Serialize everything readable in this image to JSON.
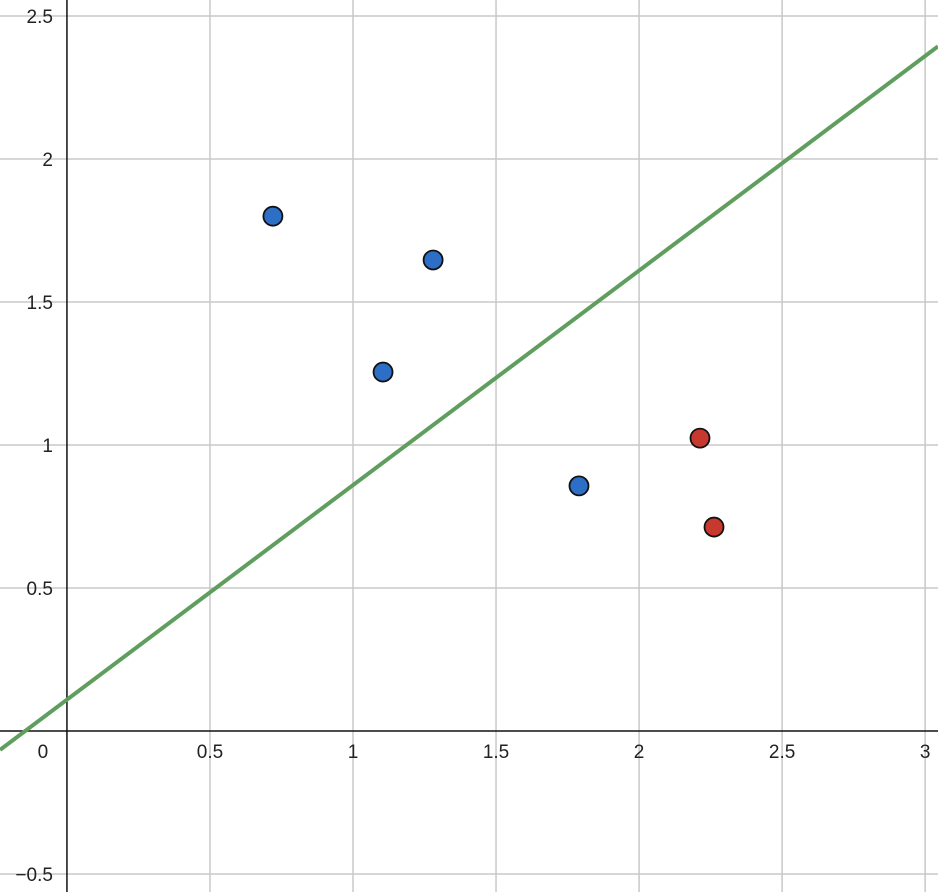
{
  "chart_data": {
    "type": "scatter",
    "xlim": [
      -0.234,
      3.045
    ],
    "ylim": [
      -0.563,
      2.556
    ],
    "xticks": [
      0,
      0.5,
      1,
      1.5,
      2,
      2.5,
      3
    ],
    "yticks": [
      {
        "value": -0.5,
        "label": "−0.5"
      },
      0.5,
      1,
      1.5,
      2,
      2.5
    ],
    "grid": true,
    "series": [
      {
        "type": "scatter",
        "color": "#2d6fc7",
        "x": [
          0.72,
          1.28,
          1.105,
          1.79
        ],
        "values": [
          1.8,
          1.647,
          1.255,
          0.857
        ]
      },
      {
        "type": "scatter",
        "color": "#c7392f",
        "x": [
          2.213,
          2.262
        ],
        "values": [
          1.024,
          0.713
        ]
      },
      {
        "type": "line",
        "color": "#5f9e5f",
        "x": [
          -0.234,
          3.045
        ],
        "values": [
          -0.066,
          2.394
        ]
      }
    ]
  }
}
